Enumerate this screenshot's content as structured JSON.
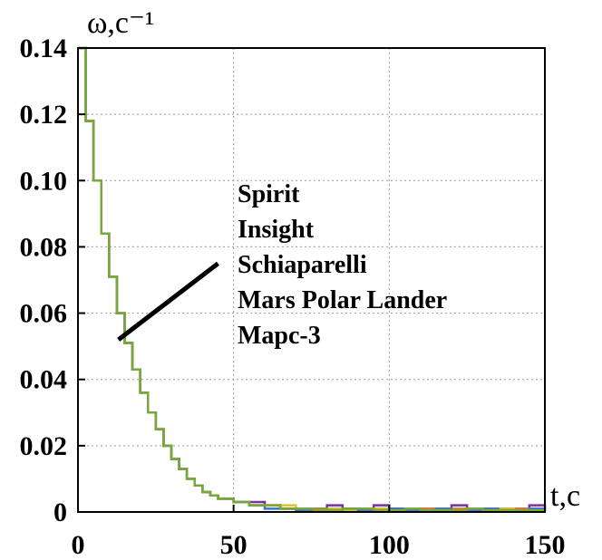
{
  "chart_data": {
    "type": "line",
    "title": "",
    "xlabel": "t,c",
    "ylabel": "ω,c⁻¹",
    "xlim": [
      0,
      150
    ],
    "ylim": [
      0,
      0.14
    ],
    "grid": true,
    "x_ticks": [
      "0",
      "50",
      "100",
      "150"
    ],
    "y_ticks": [
      "0",
      "0.02",
      "0.04",
      "0.06",
      "0.08",
      "0.10",
      "0.12",
      "0.14"
    ],
    "x_tick_values": [
      0,
      50,
      100,
      150
    ],
    "y_tick_values": [
      0,
      0.02,
      0.04,
      0.06,
      0.08,
      0.1,
      0.12,
      0.14
    ],
    "annotation": {
      "lines": [
        "Spirit",
        "Insight",
        "Schiaparelli",
        "Mars Polar Lander",
        "Марс-3"
      ],
      "pointer_from": [
        45,
        0.075
      ],
      "pointer_to": [
        13,
        0.052
      ]
    },
    "series": [
      {
        "name": "Spirit",
        "color": "#7b2fa0",
        "x": [
          0,
          2.5,
          5,
          7.5,
          10,
          12.5,
          15,
          17.5,
          20,
          22.5,
          25,
          27.5,
          30,
          32.5,
          35,
          37.5,
          40,
          42.5,
          45,
          50,
          55,
          60,
          65,
          70,
          75,
          80,
          85,
          90,
          95,
          100,
          105,
          110,
          115,
          120,
          125,
          130,
          135,
          140,
          145,
          150
        ],
        "y": [
          0.14,
          0.118,
          0.1,
          0.084,
          0.071,
          0.06,
          0.051,
          0.043,
          0.036,
          0.03,
          0.025,
          0.02,
          0.016,
          0.013,
          0.01,
          0.008,
          0.006,
          0.005,
          0.004,
          0.003,
          0.003,
          0.002,
          0.001,
          0.001,
          0.001,
          0.002,
          0.001,
          0.001,
          0.002,
          0.001,
          0.0005,
          0.001,
          0.001,
          0.002,
          0.001,
          0.0005,
          0.001,
          0.001,
          0.002,
          0.001
        ]
      },
      {
        "name": "Insight",
        "color": "#e8772e",
        "x": [
          0,
          2.5,
          5,
          7.5,
          10,
          12.5,
          15,
          17.5,
          20,
          22.5,
          25,
          27.5,
          30,
          32.5,
          35,
          37.5,
          40,
          42.5,
          45,
          50,
          55,
          60,
          65,
          70,
          75,
          80,
          85,
          90,
          95,
          100,
          105,
          110,
          115,
          120,
          125,
          130,
          135,
          140,
          145,
          150
        ],
        "y": [
          0.14,
          0.118,
          0.1,
          0.084,
          0.071,
          0.06,
          0.051,
          0.043,
          0.036,
          0.03,
          0.025,
          0.02,
          0.016,
          0.013,
          0.01,
          0.008,
          0.006,
          0.005,
          0.004,
          0.003,
          0.002,
          0.002,
          0.001,
          0.001,
          0.0005,
          0.001,
          0.001,
          0.0005,
          0.001,
          0.001,
          0.0005,
          0.001,
          0.0005,
          0.001,
          0.0005,
          0.001,
          0.0005,
          0.001,
          0.0005,
          0.001
        ]
      },
      {
        "name": "Schiaparelli",
        "color": "#e0c22e",
        "x": [
          0,
          2.5,
          5,
          7.5,
          10,
          12.5,
          15,
          17.5,
          20,
          22.5,
          25,
          27.5,
          30,
          32.5,
          35,
          37.5,
          40,
          42.5,
          45,
          50,
          55,
          60,
          65,
          70,
          75,
          80,
          85,
          90,
          95,
          100,
          105,
          110,
          115,
          120,
          125,
          130,
          135,
          140,
          145,
          150
        ],
        "y": [
          0.14,
          0.118,
          0.1,
          0.084,
          0.071,
          0.06,
          0.051,
          0.043,
          0.036,
          0.03,
          0.025,
          0.02,
          0.016,
          0.013,
          0.01,
          0.008,
          0.006,
          0.005,
          0.004,
          0.003,
          0.002,
          0.002,
          0.002,
          0.001,
          0.001,
          0.001,
          0.0005,
          0.001,
          0.001,
          0.0005,
          0.001,
          0.0005,
          0.001,
          0.0005,
          0.001,
          0.0005,
          0.001,
          0.0005,
          0.001,
          0.0005
        ]
      },
      {
        "name": "Mars Polar Lander",
        "color": "#3a76c4",
        "x": [
          0,
          2.5,
          5,
          7.5,
          10,
          12.5,
          15,
          17.5,
          20,
          22.5,
          25,
          27.5,
          30,
          32.5,
          35,
          37.5,
          40,
          42.5,
          45,
          50,
          55,
          60,
          65,
          70,
          75,
          80,
          85,
          90,
          95,
          100,
          105,
          110,
          115,
          120,
          125,
          130,
          135,
          140,
          145,
          150
        ],
        "y": [
          0.14,
          0.118,
          0.1,
          0.084,
          0.071,
          0.06,
          0.051,
          0.043,
          0.036,
          0.03,
          0.025,
          0.02,
          0.016,
          0.013,
          0.01,
          0.008,
          0.006,
          0.005,
          0.004,
          0.003,
          0.002,
          0.001,
          0.001,
          0.0005,
          0.001,
          0.0005,
          0.001,
          0.0005,
          0.0005,
          0.001,
          0.0005,
          0.0005,
          0.001,
          0.0005,
          0.0005,
          0.001,
          0.0005,
          0.0005,
          0.001,
          0.0005
        ]
      },
      {
        "name": "Марс-3",
        "color": "#78a83a",
        "x": [
          0,
          2.5,
          5,
          7.5,
          10,
          12.5,
          15,
          17.5,
          20,
          22.5,
          25,
          27.5,
          30,
          32.5,
          35,
          37.5,
          40,
          42.5,
          45,
          50,
          55,
          60,
          65,
          70,
          75,
          80,
          85,
          90,
          95,
          100,
          105,
          110,
          115,
          120,
          125,
          130,
          135,
          140,
          145,
          150
        ],
        "y": [
          0.14,
          0.118,
          0.1,
          0.084,
          0.071,
          0.06,
          0.051,
          0.043,
          0.036,
          0.03,
          0.025,
          0.02,
          0.016,
          0.013,
          0.01,
          0.008,
          0.006,
          0.005,
          0.004,
          0.003,
          0.002,
          0.002,
          0.001,
          0.001,
          0.001,
          0.0005,
          0.001,
          0.001,
          0.0005,
          0.0005,
          0.001,
          0.0005,
          0.0005,
          0.0005,
          0.001,
          0.0005,
          0.0005,
          0.0005,
          0.0005,
          0.0005
        ]
      }
    ]
  }
}
